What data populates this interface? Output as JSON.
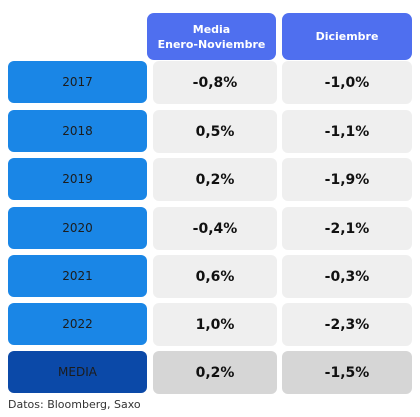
{
  "header": {
    "col1_line1": "Media",
    "col1_line2": "Enero-Noviembre",
    "col2": "Diciembre"
  },
  "rows": [
    {
      "label": "2017",
      "media": "-0,8%",
      "diciembre": "-1,0%"
    },
    {
      "label": "2018",
      "media": "0,5%",
      "diciembre": "-1,1%"
    },
    {
      "label": "2019",
      "media": "0,2%",
      "diciembre": "-1,9%"
    },
    {
      "label": "2020",
      "media": "-0,4%",
      "diciembre": "-2,1%"
    },
    {
      "label": "2021",
      "media": "0,6%",
      "diciembre": "-0,3%"
    },
    {
      "label": "2022",
      "media": "1,0%",
      "diciembre": "-2,3%"
    },
    {
      "label": "MEDIA",
      "media": "0,2%",
      "diciembre": "-1,5%"
    }
  ],
  "source": "Datos: Bloomberg, Saxo"
}
